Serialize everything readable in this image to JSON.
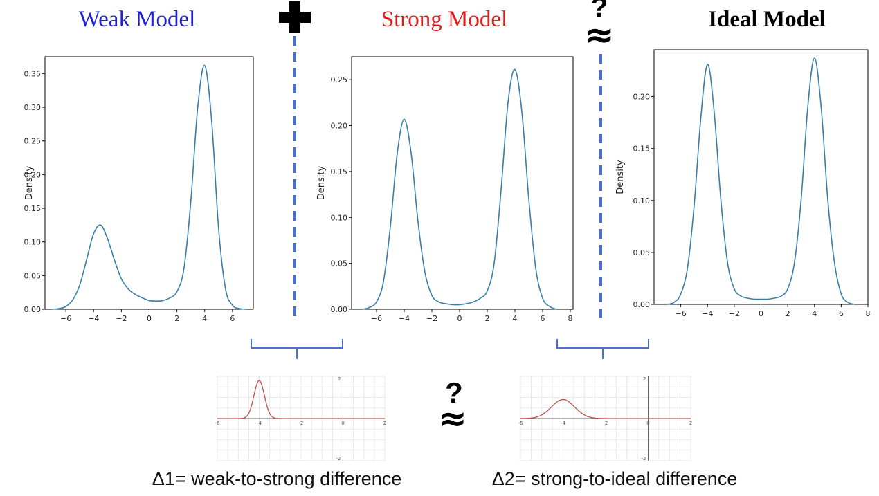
{
  "titles": {
    "weak": "Weak Model",
    "strong": "Strong Model",
    "ideal": "Ideal Model"
  },
  "symbols": {
    "question": "?",
    "approx": "≈"
  },
  "captions": {
    "delta1": "Δ1= weak-to-strong difference",
    "delta2": "Δ2= strong-to-ideal difference"
  },
  "colors": {
    "weak_title": "#1f1fd8",
    "strong_title": "#e01b1b",
    "ideal_title": "#000000",
    "density_curve": "#3a7ea8",
    "difference_curve": "#c0504d",
    "dashed_line": "#4a6fd1",
    "brace": "#4a6fd1"
  },
  "chart_data": [
    {
      "type": "line",
      "name": "weak",
      "ylabel": "Density",
      "xticks": [
        "−6",
        "−4",
        "−2",
        "0",
        "2",
        "4",
        "6"
      ],
      "yticks": [
        "0.00",
        "0.05",
        "0.10",
        "0.15",
        "0.20",
        "0.25",
        "0.30",
        "0.35"
      ],
      "xlim": [
        -7.5,
        7.5
      ],
      "ylim": [
        0,
        0.375
      ],
      "x": [
        -7.0,
        -6.5,
        -6.0,
        -5.5,
        -5.0,
        -4.5,
        -4.0,
        -3.5,
        -3.0,
        -2.5,
        -2.0,
        -1.5,
        -1.0,
        -0.5,
        0.0,
        0.5,
        1.0,
        1.5,
        2.0,
        2.5,
        3.0,
        3.5,
        4.0,
        4.5,
        5.0,
        5.5,
        6.0,
        6.5,
        7.0
      ],
      "y": [
        0.0,
        0.001,
        0.004,
        0.014,
        0.036,
        0.074,
        0.112,
        0.125,
        0.105,
        0.073,
        0.045,
        0.03,
        0.022,
        0.017,
        0.013,
        0.012,
        0.013,
        0.017,
        0.026,
        0.06,
        0.16,
        0.3,
        0.362,
        0.28,
        0.12,
        0.03,
        0.006,
        0.001,
        0.0
      ]
    },
    {
      "type": "line",
      "name": "strong",
      "ylabel": "Density",
      "xticks": [
        "−6",
        "−4",
        "−2",
        "0",
        "2",
        "4",
        "6",
        "8"
      ],
      "yticks": [
        "0.00",
        "0.05",
        "0.10",
        "0.15",
        "0.20",
        "0.25"
      ],
      "xlim": [
        -7.8,
        8.2
      ],
      "ylim": [
        0,
        0.275
      ],
      "x": [
        -7.0,
        -6.5,
        -6.0,
        -5.5,
        -5.0,
        -4.5,
        -4.0,
        -3.5,
        -3.0,
        -2.5,
        -2.0,
        -1.5,
        -1.0,
        -0.5,
        0.0,
        0.5,
        1.0,
        1.5,
        2.0,
        2.5,
        3.0,
        3.5,
        4.0,
        4.5,
        5.0,
        5.5,
        6.0,
        6.5,
        7.0
      ],
      "y": [
        0.0,
        0.002,
        0.008,
        0.03,
        0.09,
        0.17,
        0.207,
        0.17,
        0.095,
        0.04,
        0.015,
        0.008,
        0.006,
        0.005,
        0.005,
        0.006,
        0.008,
        0.012,
        0.02,
        0.05,
        0.13,
        0.225,
        0.261,
        0.215,
        0.12,
        0.045,
        0.012,
        0.003,
        0.0
      ]
    },
    {
      "type": "line",
      "name": "ideal",
      "ylabel": "Density",
      "xticks": [
        "−6",
        "−4",
        "−2",
        "0",
        "2",
        "4",
        "6",
        "8"
      ],
      "yticks": [
        "0.00",
        "0.05",
        "0.10",
        "0.15",
        "0.20"
      ],
      "xlim": [
        -8.0,
        8.0
      ],
      "ylim": [
        0,
        0.245
      ],
      "x": [
        -7.0,
        -6.5,
        -6.0,
        -5.5,
        -5.0,
        -4.5,
        -4.0,
        -3.5,
        -3.0,
        -2.5,
        -2.0,
        -1.5,
        -1.0,
        -0.5,
        0.0,
        0.5,
        1.0,
        1.5,
        2.0,
        2.5,
        3.0,
        3.5,
        4.0,
        4.5,
        5.0,
        5.5,
        6.0,
        6.5,
        7.0
      ],
      "y": [
        0.0,
        0.002,
        0.01,
        0.035,
        0.095,
        0.18,
        0.231,
        0.185,
        0.1,
        0.04,
        0.015,
        0.008,
        0.006,
        0.005,
        0.005,
        0.005,
        0.006,
        0.008,
        0.015,
        0.04,
        0.1,
        0.19,
        0.237,
        0.19,
        0.1,
        0.04,
        0.01,
        0.002,
        0.0
      ]
    },
    {
      "type": "line",
      "name": "delta1",
      "xticks": [
        "-6",
        "-4",
        "-2",
        "0",
        "2"
      ],
      "yticks": [
        "2",
        "-2"
      ],
      "xlim": [
        -6,
        2
      ],
      "ylim": [
        -2,
        2
      ],
      "peak_x": -4,
      "peak_y": 1.8,
      "sigma": 0.25
    },
    {
      "type": "line",
      "name": "delta2",
      "xticks": [
        "-6",
        "-4",
        "-2",
        "0",
        "2"
      ],
      "yticks": [
        "2",
        "-2"
      ],
      "xlim": [
        -6,
        2
      ],
      "ylim": [
        -2,
        2
      ],
      "peak_x": -4,
      "peak_y": 0.9,
      "sigma": 0.55
    }
  ]
}
